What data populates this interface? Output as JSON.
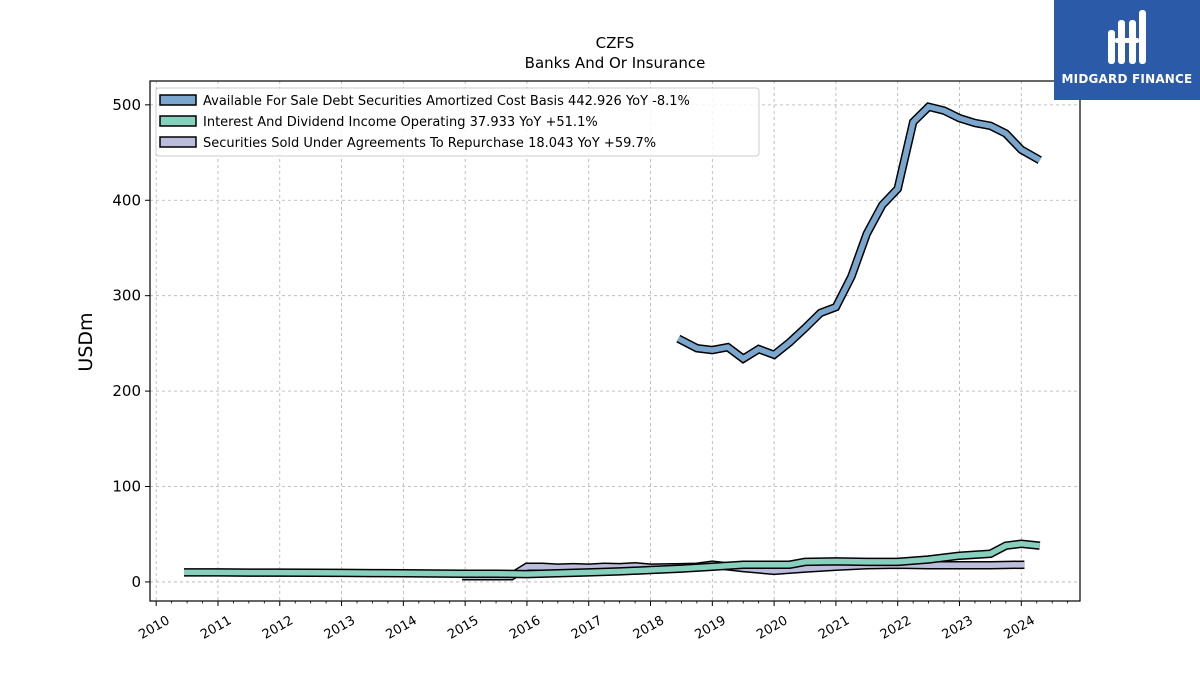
{
  "brand": {
    "name": "MIDGARD FINANCE",
    "color": "#2b5aa8"
  },
  "chart_data": {
    "type": "line",
    "title": "CZFS",
    "subtitle": "Banks And Or Insurance",
    "ylabel": "USDm",
    "xlabel": "",
    "ylim": [
      -20,
      525
    ],
    "xlim": [
      2009.9,
      2024.95
    ],
    "yticks": [
      0,
      100,
      200,
      300,
      400,
      500
    ],
    "xticks": [
      2010,
      2011,
      2012,
      2013,
      2014,
      2015,
      2016,
      2017,
      2018,
      2019,
      2020,
      2021,
      2022,
      2023,
      2024
    ],
    "grid": true,
    "legend_position": "top-left",
    "series": [
      {
        "name": "Available For Sale Debt Securities Amortized Cost Basis",
        "legend_label": "Available For Sale Debt Securities Amortized Cost Basis  442.926 YoY -8.1%",
        "color": "#7ba7cf",
        "x": [
          2018.45,
          2018.75,
          2019.0,
          2019.25,
          2019.5,
          2019.75,
          2020.0,
          2020.25,
          2020.5,
          2020.75,
          2021.0,
          2021.25,
          2021.5,
          2021.75,
          2022.0,
          2022.25,
          2022.5,
          2022.75,
          2023.0,
          2023.25,
          2023.5,
          2023.75,
          2024.0,
          2024.3
        ],
        "y": [
          255,
          245,
          243,
          246,
          234,
          244,
          238,
          251,
          266,
          282,
          288,
          320,
          365,
          395,
          412,
          482,
          498,
          494,
          486,
          481,
          478,
          470,
          453,
          442
        ]
      },
      {
        "name": "Interest And Dividend Income Operating",
        "legend_label": "Interest And Dividend Income Operating  37.933 YoY +51.1%",
        "color": "#86d0bd",
        "x": [
          2010.45,
          2011.0,
          2011.5,
          2012.0,
          2012.5,
          2013.0,
          2013.5,
          2014.0,
          2014.5,
          2015.0,
          2015.5,
          2016.0,
          2016.5,
          2017.0,
          2017.5,
          2018.0,
          2018.5,
          2019.0,
          2019.5,
          2020.0,
          2020.25,
          2020.5,
          2021.0,
          2021.5,
          2022.0,
          2022.5,
          2023.0,
          2023.5,
          2023.75,
          2024.0,
          2024.3
        ],
        "y": [
          10,
          10,
          9.8,
          9.8,
          9.6,
          9.5,
          9.2,
          9.0,
          8.8,
          8.6,
          8.5,
          8.2,
          9.0,
          10.0,
          11.0,
          12.5,
          14.0,
          16.0,
          18.0,
          18.0,
          18.0,
          21.0,
          21.5,
          21.0,
          21.0,
          23.5,
          27.5,
          29.5,
          38.0,
          40.0,
          38.0
        ]
      },
      {
        "name": "Securities Sold Under Agreements To Repurchase",
        "legend_label": "Securities Sold Under Agreements To Repurchase  18.043 YoY +59.7%",
        "color": "#bcbcdc",
        "x": [
          2014.95,
          2015.25,
          2015.75,
          2016.0,
          2016.25,
          2016.5,
          2016.75,
          2017.0,
          2017.25,
          2017.5,
          2017.75,
          2018.0,
          2018.5,
          2018.75,
          2019.0,
          2019.5,
          2020.0,
          2020.5,
          2021.0,
          2021.5,
          2022.0,
          2022.5,
          2023.0,
          2023.5,
          2024.05
        ],
        "y": [
          6,
          6,
          6,
          16,
          16,
          15,
          15.5,
          15,
          16,
          15.5,
          16.5,
          15,
          15.5,
          16,
          18,
          14.5,
          11.5,
          14,
          16,
          17.5,
          18,
          17.5,
          17.5,
          17.5,
          18
        ]
      }
    ]
  }
}
